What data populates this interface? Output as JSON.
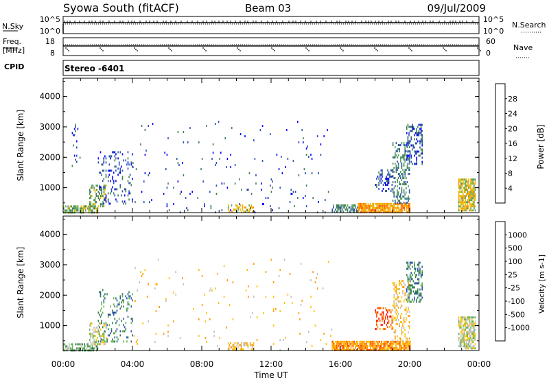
{
  "header": {
    "station": "Syowa South (fitACF)",
    "beam": "Beam 03",
    "date": "09/Jul/2009"
  },
  "top_panels": {
    "nsky": {
      "label": "N.Sky",
      "ticks": [
        "10^5",
        "10^0"
      ],
      "right_label": "N.Search",
      "right_ticks": [
        "10^5",
        "10^0"
      ]
    },
    "freq": {
      "label_line1": "Freq.",
      "label_line2": "[MHz]",
      "ticks": [
        "18",
        "8"
      ],
      "right_label": "Nave",
      "right_ticks": [
        "60",
        "0"
      ]
    },
    "cpid": {
      "label": "CPID",
      "value": "Stereo -6401"
    }
  },
  "colors": {
    "power_scale": [
      "#0000ff",
      "#2a4fb0",
      "#3f7d52",
      "#4fa062",
      "#e6b800",
      "#ff9900",
      "#ff5a00",
      "#ff0000"
    ],
    "velocity_scale": [
      "#ff0000",
      "#ff4d00",
      "#ff9900",
      "#ffc000",
      "#bebebe",
      "#62b04d",
      "#2f7a4f",
      "#2a4fb0",
      "#1a35c8"
    ]
  },
  "chart_data": [
    {
      "type": "heatmap",
      "name": "power",
      "xlabel": "",
      "ylabel": "Slant Range [km]",
      "xticks": [
        "00:00",
        "04:00",
        "08:00",
        "12:00",
        "16:00",
        "20:00",
        "00:00"
      ],
      "xlim": [
        0,
        24
      ],
      "ylim": [
        180,
        4600
      ],
      "yticks": [
        1000,
        2000,
        3000,
        4000
      ],
      "colorbar": {
        "label": "Power [dB]",
        "ticks": [
          "4",
          "8",
          "12",
          "16",
          "20",
          "24",
          "28"
        ]
      },
      "regions": [
        {
          "t0": 0.0,
          "t1": 2.0,
          "r0": 180,
          "r1": 420,
          "level": 3,
          "density": 0.7
        },
        {
          "t0": 1.5,
          "t1": 2.5,
          "r0": 400,
          "r1": 1100,
          "level": 3,
          "density": 0.5
        },
        {
          "t0": 2.0,
          "t1": 4.0,
          "r0": 500,
          "r1": 2200,
          "level": 1,
          "density": 0.15
        },
        {
          "t0": 0.5,
          "t1": 1.0,
          "r0": 1500,
          "r1": 3100,
          "level": 1,
          "density": 0.15
        },
        {
          "t0": 9.5,
          "t1": 11.0,
          "r0": 180,
          "r1": 450,
          "level": 4,
          "density": 0.5
        },
        {
          "t0": 15.5,
          "t1": 17.0,
          "r0": 180,
          "r1": 450,
          "level": 2,
          "density": 0.6
        },
        {
          "t0": 17.0,
          "t1": 20.0,
          "r0": 180,
          "r1": 500,
          "level": 5,
          "density": 0.85
        },
        {
          "t0": 18.0,
          "t1": 19.0,
          "r0": 900,
          "r1": 1600,
          "level": 1,
          "density": 0.35
        },
        {
          "t0": 19.0,
          "t1": 20.0,
          "r0": 500,
          "r1": 2500,
          "level": 2,
          "density": 0.35
        },
        {
          "t0": 19.8,
          "t1": 20.7,
          "r0": 1800,
          "r1": 3100,
          "level": 1,
          "density": 0.4
        },
        {
          "t0": 22.8,
          "t1": 23.8,
          "r0": 250,
          "r1": 1300,
          "level": 4,
          "density": 0.75
        },
        {
          "t0": 4.0,
          "t1": 15.5,
          "r0": 180,
          "r1": 3200,
          "level": 1,
          "density": 0.02
        }
      ]
    },
    {
      "type": "heatmap",
      "name": "velocity",
      "xlabel": "Time UT",
      "ylabel": "Slant Range [km]",
      "xticks": [
        "00:00",
        "04:00",
        "08:00",
        "12:00",
        "16:00",
        "20:00",
        "00:00"
      ],
      "xlim": [
        0,
        24
      ],
      "ylim": [
        180,
        4600
      ],
      "yticks": [
        1000,
        2000,
        3000,
        4000
      ],
      "colorbar": {
        "label": "Velocity [m s-1]",
        "ticks": [
          "1000",
          "500",
          "100",
          "25",
          "-25",
          "-100",
          "-500",
          "-1000"
        ]
      },
      "regions": [
        {
          "t0": 0.0,
          "t1": 2.0,
          "r0": 180,
          "r1": 420,
          "level": 5,
          "density": 0.6
        },
        {
          "t0": 1.5,
          "t1": 2.5,
          "r0": 400,
          "r1": 1100,
          "level": 4,
          "density": 0.45
        },
        {
          "t0": 2.0,
          "t1": 4.0,
          "r0": 500,
          "r1": 2200,
          "level": 6,
          "density": 0.15
        },
        {
          "t0": 9.5,
          "t1": 11.0,
          "r0": 180,
          "r1": 450,
          "level": 3,
          "density": 0.5
        },
        {
          "t0": 15.5,
          "t1": 20.0,
          "r0": 180,
          "r1": 500,
          "level": 2,
          "density": 0.85
        },
        {
          "t0": 18.0,
          "t1": 19.0,
          "r0": 900,
          "r1": 1600,
          "level": 1,
          "density": 0.35
        },
        {
          "t0": 19.0,
          "t1": 20.0,
          "r0": 500,
          "r1": 2500,
          "level": 3,
          "density": 0.3
        },
        {
          "t0": 19.8,
          "t1": 20.7,
          "r0": 1800,
          "r1": 3100,
          "level": 6,
          "density": 0.4
        },
        {
          "t0": 22.8,
          "t1": 23.8,
          "r0": 250,
          "r1": 1300,
          "level": 4,
          "density": 0.7
        },
        {
          "t0": 4.0,
          "t1": 15.5,
          "r0": 180,
          "r1": 3200,
          "level": 3,
          "density": 0.02
        }
      ]
    }
  ]
}
